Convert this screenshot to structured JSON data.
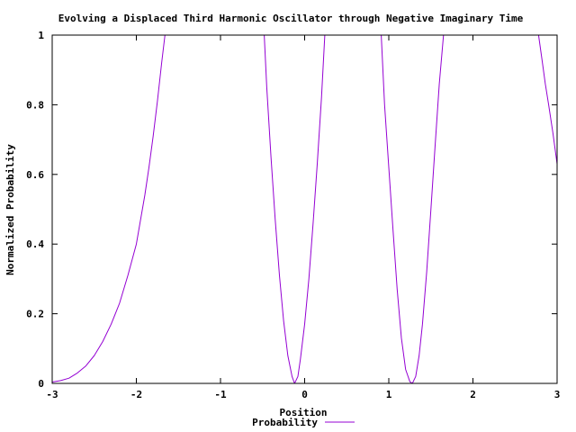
{
  "chart_data": {
    "type": "line",
    "title": "Evolving a Displaced Third Harmonic Oscillator through Negative Imaginary Time",
    "xlabel": "Position",
    "ylabel": "Normalized Probability",
    "xlim": [
      -3,
      3
    ],
    "ylim": [
      0,
      1
    ],
    "x_ticks": [
      {
        "value": -3,
        "label": "-3"
      },
      {
        "value": -2,
        "label": "-2"
      },
      {
        "value": -1,
        "label": "-1"
      },
      {
        "value": 0,
        "label": "0"
      },
      {
        "value": 1,
        "label": "1"
      },
      {
        "value": 2,
        "label": "2"
      },
      {
        "value": 3,
        "label": "3"
      }
    ],
    "y_ticks": [
      {
        "value": 0,
        "label": "0"
      },
      {
        "value": 0.2,
        "label": "0.2"
      },
      {
        "value": 0.4,
        "label": "0.4"
      },
      {
        "value": 0.6,
        "label": "0.6"
      },
      {
        "value": 0.8,
        "label": "0.8"
      },
      {
        "value": 1,
        "label": "1"
      }
    ],
    "grid": false,
    "legend_position": "bottom-center",
    "series": [
      {
        "name": "Probability",
        "color": "#9400d3",
        "segments": [
          [
            [
              -3.0,
              0.004
            ],
            [
              -2.9,
              0.008
            ],
            [
              -2.8,
              0.015
            ],
            [
              -2.7,
              0.03
            ],
            [
              -2.6,
              0.05
            ],
            [
              -2.5,
              0.08
            ],
            [
              -2.4,
              0.12
            ],
            [
              -2.3,
              0.17
            ],
            [
              -2.2,
              0.23
            ],
            [
              -2.1,
              0.31
            ],
            [
              -2.0,
              0.4
            ],
            [
              -1.95,
              0.47
            ],
            [
              -1.9,
              0.54
            ],
            [
              -1.85,
              0.62
            ],
            [
              -1.8,
              0.71
            ],
            [
              -1.75,
              0.81
            ],
            [
              -1.7,
              0.92
            ],
            [
              -1.66,
              1.0
            ]
          ],
          [
            [
              -0.48,
              1.0
            ],
            [
              -0.45,
              0.85
            ],
            [
              -0.4,
              0.65
            ],
            [
              -0.35,
              0.47
            ],
            [
              -0.3,
              0.31
            ],
            [
              -0.25,
              0.18
            ],
            [
              -0.2,
              0.08
            ],
            [
              -0.15,
              0.02
            ],
            [
              -0.12,
              0.0
            ],
            [
              -0.08,
              0.02
            ],
            [
              -0.05,
              0.07
            ],
            [
              0.0,
              0.17
            ],
            [
              0.05,
              0.3
            ],
            [
              0.1,
              0.46
            ],
            [
              0.15,
              0.63
            ],
            [
              0.2,
              0.82
            ],
            [
              0.24,
              1.0
            ]
          ],
          [
            [
              0.91,
              1.0
            ],
            [
              0.95,
              0.8
            ],
            [
              1.0,
              0.62
            ],
            [
              1.05,
              0.44
            ],
            [
              1.1,
              0.27
            ],
            [
              1.15,
              0.13
            ],
            [
              1.2,
              0.04
            ],
            [
              1.25,
              0.005
            ],
            [
              1.28,
              0.0
            ],
            [
              1.32,
              0.02
            ],
            [
              1.36,
              0.08
            ],
            [
              1.4,
              0.17
            ],
            [
              1.45,
              0.32
            ],
            [
              1.5,
              0.5
            ],
            [
              1.55,
              0.68
            ],
            [
              1.6,
              0.86
            ],
            [
              1.65,
              1.0
            ]
          ],
          [
            [
              2.78,
              1.0
            ],
            [
              2.82,
              0.93
            ],
            [
              2.86,
              0.86
            ],
            [
              2.9,
              0.8
            ],
            [
              2.95,
              0.72
            ],
            [
              3.0,
              0.63
            ]
          ]
        ]
      }
    ]
  }
}
